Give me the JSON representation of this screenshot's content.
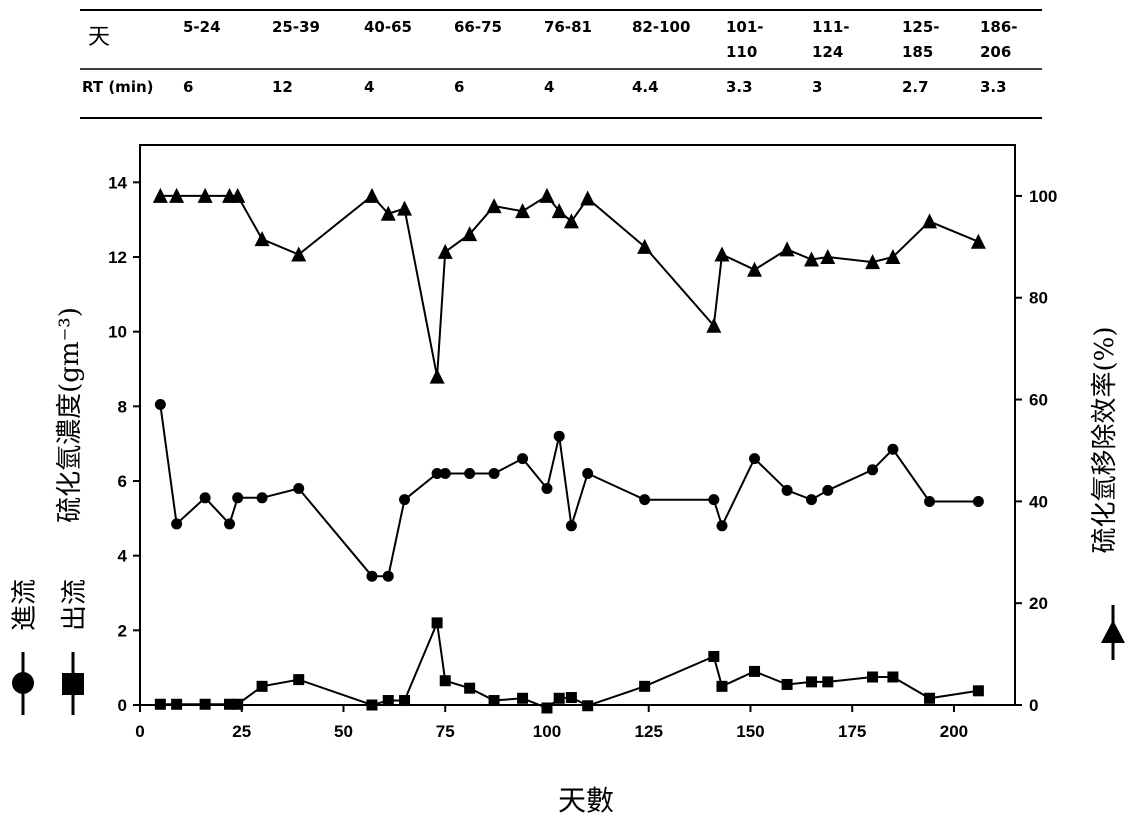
{
  "table": {
    "row1_header": "天",
    "row2_header": "RT (min)",
    "columns": [
      {
        "day_range": [
          "5-24"
        ],
        "rt": "6"
      },
      {
        "day_range": [
          "25-39"
        ],
        "rt": "12"
      },
      {
        "day_range": [
          "40-65"
        ],
        "rt": "4"
      },
      {
        "day_range": [
          "66-75"
        ],
        "rt": "6"
      },
      {
        "day_range": [
          "76-81"
        ],
        "rt": "4"
      },
      {
        "day_range": [
          "82-100"
        ],
        "rt": "4.4"
      },
      {
        "day_range": [
          "101-",
          "110"
        ],
        "rt": "3.3"
      },
      {
        "day_range": [
          "111-",
          "124"
        ],
        "rt": "3"
      },
      {
        "day_range": [
          "125-",
          "185"
        ],
        "rt": "2.7"
      },
      {
        "day_range": [
          "186-",
          "206"
        ],
        "rt": "3.3"
      }
    ]
  },
  "chart_data": {
    "type": "line",
    "xlabel": "天數",
    "ylabel_left": "硫化氫濃度(gm⁻³)",
    "ylabel_right": "硫化氫移除效率(%)",
    "xlim": [
      0,
      215
    ],
    "ylim_left": [
      0,
      15
    ],
    "ylim_right": [
      0,
      110
    ],
    "x_ticks": [
      0,
      25,
      50,
      75,
      100,
      125,
      150,
      175,
      200
    ],
    "y_left_ticks": [
      0,
      2,
      4,
      6,
      8,
      10,
      12,
      14
    ],
    "y_right_ticks": [
      0,
      20,
      40,
      60,
      80,
      100
    ],
    "grid": false,
    "series": [
      {
        "name": "進流",
        "axis": "left",
        "marker": "circle",
        "points": [
          [
            5,
            8.05
          ],
          [
            9,
            4.85
          ],
          [
            16,
            5.55
          ],
          [
            22,
            4.85
          ],
          [
            24,
            5.55
          ],
          [
            30,
            5.55
          ],
          [
            39,
            5.8
          ],
          [
            57,
            3.45
          ],
          [
            61,
            3.45
          ],
          [
            65,
            5.5
          ],
          [
            73,
            6.2
          ],
          [
            75,
            6.2
          ],
          [
            81,
            6.2
          ],
          [
            87,
            6.2
          ],
          [
            94,
            6.6
          ],
          [
            100,
            5.8
          ],
          [
            103,
            7.2
          ],
          [
            106,
            4.8
          ],
          [
            110,
            6.2
          ],
          [
            124,
            5.5
          ],
          [
            141,
            5.5
          ],
          [
            143,
            4.8
          ],
          [
            151,
            6.6
          ],
          [
            159,
            5.75
          ],
          [
            165,
            5.5
          ],
          [
            169,
            5.75
          ],
          [
            180,
            6.3
          ],
          [
            185,
            6.85
          ],
          [
            194,
            5.45
          ],
          [
            206,
            5.45
          ]
        ]
      },
      {
        "name": "出流",
        "axis": "left",
        "marker": "square",
        "points": [
          [
            5,
            0.02
          ],
          [
            9,
            0.02
          ],
          [
            16,
            0.02
          ],
          [
            22,
            0.02
          ],
          [
            24,
            0.02
          ],
          [
            30,
            0.5
          ],
          [
            39,
            0.68
          ],
          [
            57,
            0.0
          ],
          [
            61,
            0.12
          ],
          [
            65,
            0.12
          ],
          [
            73,
            2.2
          ],
          [
            75,
            0.65
          ],
          [
            81,
            0.45
          ],
          [
            87,
            0.12
          ],
          [
            94,
            0.18
          ],
          [
            100,
            -0.08
          ],
          [
            103,
            0.18
          ],
          [
            106,
            0.2
          ],
          [
            110,
            -0.02
          ],
          [
            124,
            0.5
          ],
          [
            141,
            1.3
          ],
          [
            143,
            0.5
          ],
          [
            151,
            0.9
          ],
          [
            159,
            0.55
          ],
          [
            165,
            0.62
          ],
          [
            169,
            0.62
          ],
          [
            180,
            0.75
          ],
          [
            185,
            0.75
          ],
          [
            194,
            0.18
          ],
          [
            206,
            0.38
          ]
        ]
      },
      {
        "name": "",
        "axis": "right",
        "marker": "triangle",
        "points": [
          [
            5,
            100
          ],
          [
            9,
            100
          ],
          [
            16,
            100
          ],
          [
            22,
            100
          ],
          [
            24,
            100
          ],
          [
            30,
            91.5
          ],
          [
            39,
            88.5
          ],
          [
            57,
            100
          ],
          [
            61,
            96.5
          ],
          [
            65,
            97.5
          ],
          [
            73,
            64.5
          ],
          [
            75,
            89
          ],
          [
            81,
            92.5
          ],
          [
            87,
            98
          ],
          [
            94,
            97
          ],
          [
            100,
            100
          ],
          [
            103,
            97
          ],
          [
            106,
            95
          ],
          [
            110,
            99.5
          ],
          [
            124,
            90
          ],
          [
            141,
            74.5
          ],
          [
            143,
            88.5
          ],
          [
            151,
            85.5
          ],
          [
            159,
            89.5
          ],
          [
            165,
            87.5
          ],
          [
            169,
            88
          ],
          [
            180,
            87
          ],
          [
            185,
            88
          ],
          [
            194,
            95
          ],
          [
            206,
            91
          ]
        ]
      }
    ]
  },
  "legend_left": {
    "inflow": "進流",
    "outflow": "出流",
    "ylabel": "硫化氫濃度(gm⁻³)"
  },
  "legend_right": {
    "ylabel": "硫化氫移除效率(%)"
  }
}
